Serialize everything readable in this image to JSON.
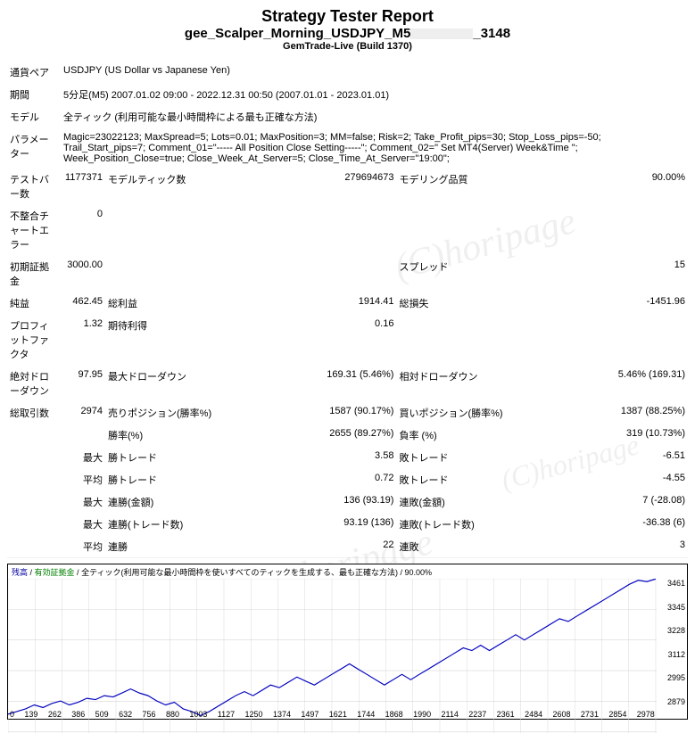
{
  "header": {
    "title": "Strategy Tester Report",
    "strategy_prefix": "gee_Scalper_Morning_USDJPY_M5",
    "strategy_suffix": "_3148",
    "subtitle": "GemTrade-Live (Build 1370)"
  },
  "watermark": "(C)horipage",
  "rows": {
    "symbol_lbl": "通貨ペア",
    "symbol_val": "USDJPY (US Dollar vs Japanese Yen)",
    "period_lbl": "期間",
    "period_val": "5分足(M5) 2007.01.02 09:00 - 2022.12.31 00:50 (2007.01.01 - 2023.01.01)",
    "model_lbl": "モデル",
    "model_val": "全ティック (利用可能な最小時間枠による最も正確な方法)",
    "params_lbl": "パラメーター",
    "params_val": "Magic=23022123; MaxSpread=5; Lots=0.01; MaxPosition=3; MM=false; Risk=2; Take_Profit_pips=30; Stop_Loss_pips=-50; Trail_Start_pips=7; Comment_01=\"----- All Position Close Setting-----\"; Comment_02=\" Set MT4(Server) Week&Time \"; Week_Position_Close=true; Close_Week_At_Server=5; Close_Time_At_Server=\"19:00\";",
    "bars_lbl": "テストバー数",
    "bars_val": "1177371",
    "ticks_lbl": "モデルティック数",
    "ticks_val": "279694673",
    "quality_lbl": "モデリング品質",
    "quality_val": "90.00%",
    "mismatch_lbl": "不整合チャートエラー",
    "mismatch_val": "0",
    "deposit_lbl": "初期証拠金",
    "deposit_val": "3000.00",
    "spread_lbl": "スプレッド",
    "spread_val": "15",
    "netprofit_lbl": "純益",
    "netprofit_val": "462.45",
    "grossprofit_lbl": "総利益",
    "grossprofit_val": "1914.41",
    "grossloss_lbl": "総損失",
    "grossloss_val": "-1451.96",
    "pf_lbl": "プロフィットファクタ",
    "pf_val": "1.32",
    "ep_lbl": "期待利得",
    "ep_val": "0.16",
    "absdd_lbl": "絶対ドローダウン",
    "absdd_val": "97.95",
    "maxdd_lbl": "最大ドローダウン",
    "maxdd_val": "169.31 (5.46%)",
    "reldd_lbl": "相対ドローダウン",
    "reldd_val": "5.46% (169.31)",
    "total_lbl": "総取引数",
    "total_val": "2974",
    "short_lbl": "売りポジション(勝率%)",
    "short_val": "1587 (90.17%)",
    "long_lbl": "買いポジション(勝率%)",
    "long_val": "1387 (88.25%)",
    "profit_trades_lbl": "勝率(%)",
    "profit_trades_val": "2655 (89.27%)",
    "loss_trades_lbl": "負率 (%)",
    "loss_trades_val": "319 (10.73%)",
    "largest_lbl": "最大",
    "largest_profit_lbl": "勝トレード",
    "largest_profit_val": "3.58",
    "largest_loss_lbl": "敗トレード",
    "largest_loss_val": "-6.51",
    "avg_lbl": "平均",
    "avg_profit_lbl": "勝トレード",
    "avg_profit_val": "0.72",
    "avg_loss_lbl": "敗トレード",
    "avg_loss_val": "-4.55",
    "max_lbl": "最大",
    "conswins_money_lbl": "連勝(金額)",
    "conswins_money_val": "136 (93.19)",
    "consloss_money_lbl": "連敗(金額)",
    "consloss_money_val": "7 (-28.08)",
    "consprofit_count_lbl": "連勝(トレード数)",
    "consprofit_count_val": "93.19 (136)",
    "consloss_count_lbl": "連敗(トレード数)",
    "consloss_count_val": "-36.38 (6)",
    "avg2_lbl": "平均",
    "avg_conswins_lbl": "連勝",
    "avg_conswins_val": "22",
    "avg_consloss_lbl": "連敗",
    "avg_consloss_val": "3"
  },
  "chart": {
    "legend_balance": "残高",
    "legend_equity": "有効証拠金",
    "legend_model": "全ティック(利用可能な最小時間枠を使いすべてのティックを生成する、最も正確な方法) / 90.00%",
    "x_ticks": [
      "0",
      "139",
      "262",
      "386",
      "509",
      "632",
      "756",
      "880",
      "1003",
      "1127",
      "1250",
      "1374",
      "1497",
      "1621",
      "1744",
      "1868",
      "1990",
      "2114",
      "2237",
      "2361",
      "2484",
      "2608",
      "2731",
      "2854",
      "2978"
    ],
    "y_ticks": [
      "3461",
      "3345",
      "3228",
      "3112",
      "2995",
      "2879"
    ],
    "y_min": 2879,
    "y_max": 3461,
    "line_color": "#0000c0",
    "grid_color": "#d8d8d8",
    "points": [
      2950,
      2960,
      2970,
      2985,
      2975,
      2990,
      3000,
      2985,
      2995,
      3010,
      3005,
      3020,
      3015,
      3030,
      3045,
      3030,
      3020,
      3000,
      2985,
      2995,
      2970,
      2960,
      2945,
      2960,
      2980,
      3000,
      3020,
      3035,
      3020,
      3040,
      3060,
      3050,
      3070,
      3090,
      3075,
      3060,
      3080,
      3100,
      3120,
      3140,
      3120,
      3100,
      3080,
      3060,
      3080,
      3100,
      3080,
      3100,
      3120,
      3140,
      3160,
      3180,
      3200,
      3190,
      3210,
      3190,
      3210,
      3230,
      3250,
      3230,
      3250,
      3270,
      3290,
      3310,
      3300,
      3320,
      3340,
      3360,
      3380,
      3400,
      3420,
      3440,
      3455,
      3450,
      3460
    ]
  }
}
